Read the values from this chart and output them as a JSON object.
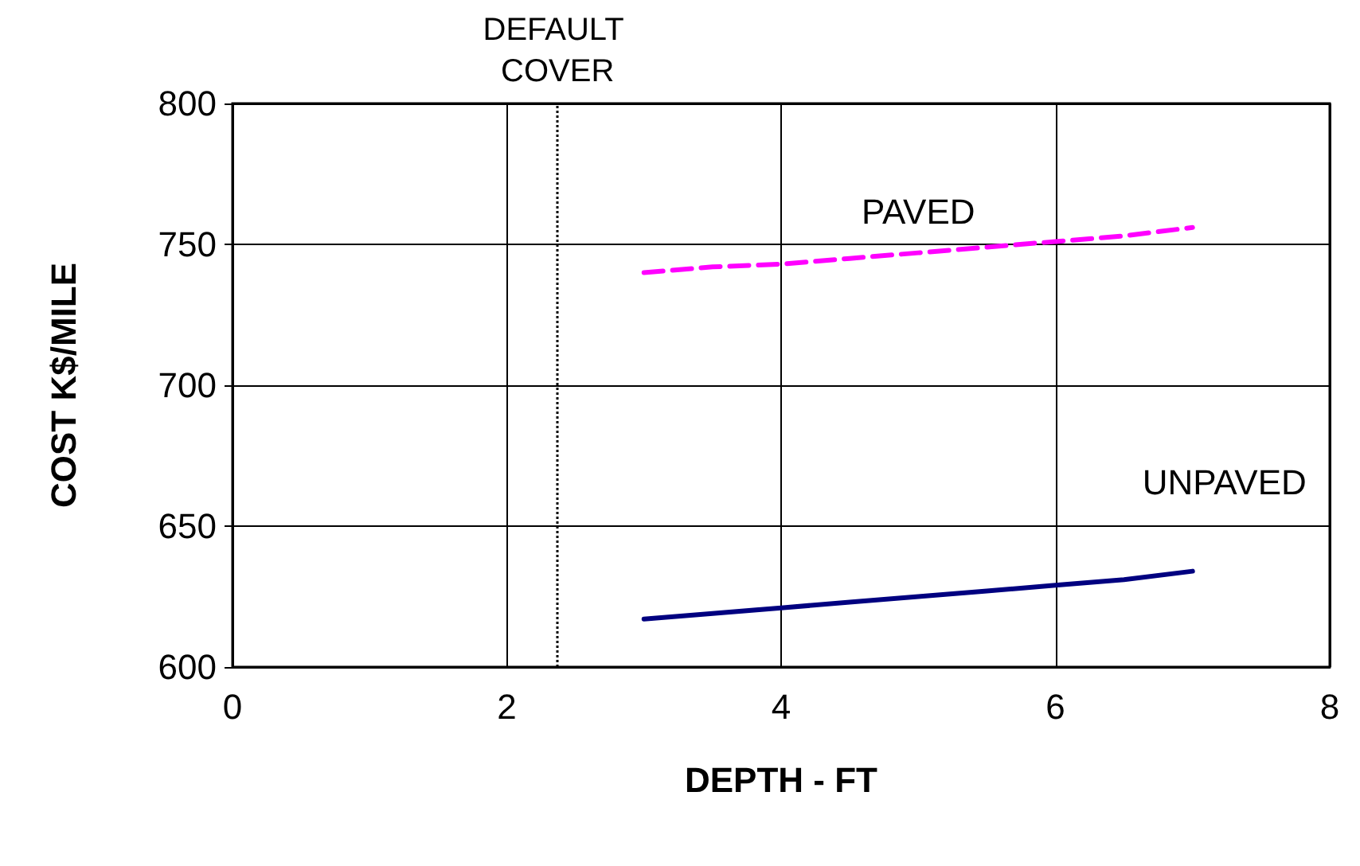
{
  "chart_data": {
    "type": "line",
    "xlabel": "DEPTH - FT",
    "ylabel": "COST K$/MILE",
    "x": [
      3,
      3.5,
      4,
      4.5,
      5,
      5.5,
      6,
      6.5,
      7
    ],
    "series": [
      {
        "name": "PAVED",
        "color": "#ff00ff",
        "line_style": "dashed",
        "values": [
          740,
          742,
          743,
          745,
          747,
          749,
          751,
          753,
          756
        ]
      },
      {
        "name": "UNPAVED",
        "color": "#000080",
        "line_style": "solid",
        "values": [
          617,
          619,
          621,
          623,
          625,
          627,
          629,
          631,
          634
        ]
      }
    ],
    "xlim": [
      0,
      8
    ],
    "xticks": [
      0,
      2,
      4,
      6,
      8
    ],
    "ylim": [
      600,
      800
    ],
    "yticks": [
      600,
      650,
      700,
      750,
      800
    ],
    "grid": true,
    "marker": "none",
    "ref_lines": [
      {
        "axis": "x",
        "value": 2.37,
        "label": "DEFAULT COVER",
        "color": "#000000",
        "line_style": "dotted"
      }
    ]
  }
}
